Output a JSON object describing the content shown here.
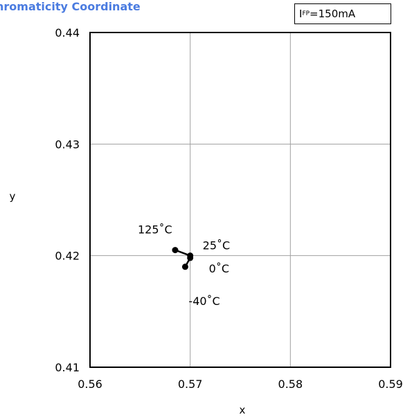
{
  "chart_data": {
    "type": "line",
    "title": "hromaticity Coordinate",
    "xlabel": "x",
    "ylabel": "y",
    "xlim": [
      0.56,
      0.59
    ],
    "ylim": [
      0.41,
      0.44
    ],
    "x_ticks": [
      "0.56",
      "0.57",
      "0.58",
      "0.59"
    ],
    "y_ticks": [
      "0.41",
      "0.42",
      "0.43",
      "0.44"
    ],
    "grid": true,
    "legend": {
      "symbol": "I",
      "subscript": "FP",
      "value": "=150mA",
      "placement": "top-right"
    },
    "series": [
      {
        "points": [
          {
            "label": "125˚C",
            "x": 0.5685,
            "y": 0.4205
          },
          {
            "label": "25˚C",
            "x": 0.57,
            "y": 0.42
          },
          {
            "label": "0˚C",
            "x": 0.57,
            "y": 0.4198
          },
          {
            "label": "-40˚C",
            "x": 0.5695,
            "y": 0.419
          }
        ]
      }
    ],
    "colors": {
      "title": "#4a7be0",
      "line": "#000000",
      "grid": "#a0a0a0"
    }
  }
}
